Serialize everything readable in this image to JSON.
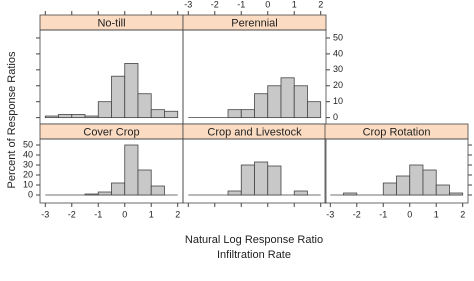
{
  "axis_labels": {
    "y": "Percent of Response Ratios",
    "x": "Natural Log Response Ratio",
    "x_sub": "Infiltration Rate"
  },
  "chart_data": [
    {
      "type": "histogram",
      "title": "No-till",
      "color": "#c8c8c8",
      "strip_color": "#fbdcc2",
      "bins": [
        -3,
        -2.5,
        -2,
        -1.5,
        -1,
        -0.5,
        0,
        0.5,
        1,
        1.5,
        2
      ],
      "values": [
        1,
        2,
        2,
        1,
        10,
        26,
        34,
        15,
        5,
        4
      ],
      "xlim": [
        -3.2,
        2.2
      ],
      "xticks": [
        -3,
        -2,
        -1,
        0,
        1,
        2
      ],
      "ylim": [
        -4,
        55
      ],
      "yticks": [
        0,
        10,
        20,
        30,
        40,
        50
      ]
    },
    {
      "type": "histogram",
      "title": "Perennial",
      "color": "#c8c8c8",
      "strip_color": "#fbdcc2",
      "bins": [
        -3,
        -2.5,
        -2,
        -1.5,
        -1,
        -0.5,
        0,
        0.5,
        1,
        1.5,
        2
      ],
      "values": [
        0,
        0,
        0,
        5,
        5,
        15,
        20,
        25,
        20,
        10
      ],
      "xlim": [
        -3.2,
        2.2
      ],
      "xticks": [
        -3,
        -2,
        -1,
        0,
        1,
        2
      ],
      "ylim": [
        -4,
        55
      ],
      "yticks": [
        0,
        10,
        20,
        30,
        40,
        50
      ]
    },
    {
      "type": "histogram",
      "title": "Cover Crop",
      "color": "#c8c8c8",
      "strip_color": "#fbdcc2",
      "bins": [
        -3,
        -2.5,
        -2,
        -1.5,
        -1,
        -0.5,
        0,
        0.5,
        1,
        1.5,
        2
      ],
      "values": [
        0,
        0,
        0,
        1,
        3,
        12,
        50,
        25,
        9,
        0
      ],
      "xlim": [
        -3.2,
        2.2
      ],
      "xticks": [
        -3,
        -2,
        -1,
        0,
        1,
        2
      ],
      "ylim": [
        -8,
        56
      ],
      "yticks": [
        0,
        10,
        20,
        30,
        40,
        50
      ]
    },
    {
      "type": "histogram",
      "title": "Crop and Livestock",
      "color": "#c8c8c8",
      "strip_color": "#fbdcc2",
      "bins": [
        -3,
        -2.5,
        -2,
        -1.5,
        -1,
        -0.5,
        0,
        0.5,
        1,
        1.5,
        2
      ],
      "values": [
        0,
        0,
        0,
        4,
        30,
        33,
        29,
        0,
        4,
        0
      ],
      "xlim": [
        -3.2,
        2.2
      ],
      "xticks": [
        -3,
        -2,
        -1,
        0,
        1,
        2
      ],
      "ylim": [
        -8,
        56
      ],
      "yticks": [
        0,
        10,
        20,
        30,
        40,
        50
      ]
    },
    {
      "type": "histogram",
      "title": "Crop Rotation",
      "color": "#c8c8c8",
      "strip_color": "#fbdcc2",
      "bins": [
        -3,
        -2.5,
        -2,
        -1.5,
        -1,
        -0.5,
        0,
        0.5,
        1,
        1.5,
        2
      ],
      "values": [
        0,
        2,
        0,
        0,
        12,
        19,
        30,
        25,
        10,
        2
      ],
      "xlim": [
        -3.2,
        2.2
      ],
      "xticks": [
        -3,
        -2,
        -1,
        0,
        1,
        2
      ],
      "ylim": [
        -8,
        56
      ],
      "yticks": [
        0,
        10,
        20,
        30,
        40,
        50
      ]
    }
  ]
}
